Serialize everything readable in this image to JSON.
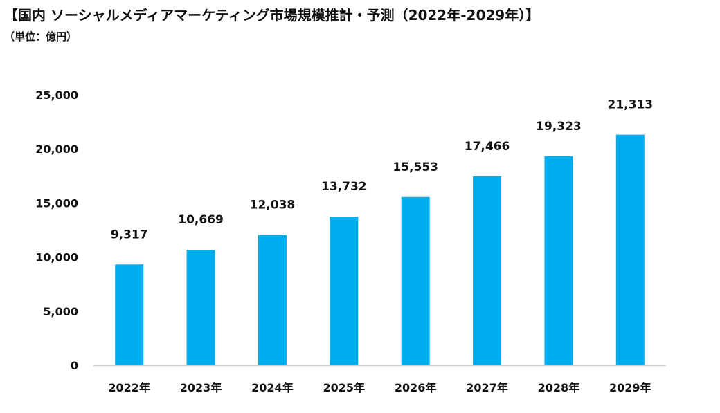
{
  "title": "【国内 ソーシャルメディアマーケティング市場規模推計・予測（2022年-2029年）】",
  "unit_label": "（単位：億円）",
  "chart_data": {
    "type": "bar",
    "categories": [
      "2022年",
      "2023年",
      "2024年",
      "2025年",
      "2026年",
      "2027年",
      "2028年",
      "2029年"
    ],
    "values": [
      9317,
      10669,
      12038,
      13732,
      15553,
      17466,
      19323,
      21313
    ],
    "value_labels": [
      "9,317",
      "10,669",
      "12,038",
      "13,732",
      "15,553",
      "17,466",
      "19,323",
      "21,313"
    ],
    "ylim": [
      0,
      25000
    ],
    "yticks": [
      0,
      5000,
      10000,
      15000,
      20000,
      25000
    ],
    "ytick_labels": [
      "0",
      "5,000",
      "10,000",
      "15,000",
      "20,000",
      "25,000"
    ],
    "bar_color": "#00AEEF",
    "grid": false,
    "legend": "none"
  }
}
